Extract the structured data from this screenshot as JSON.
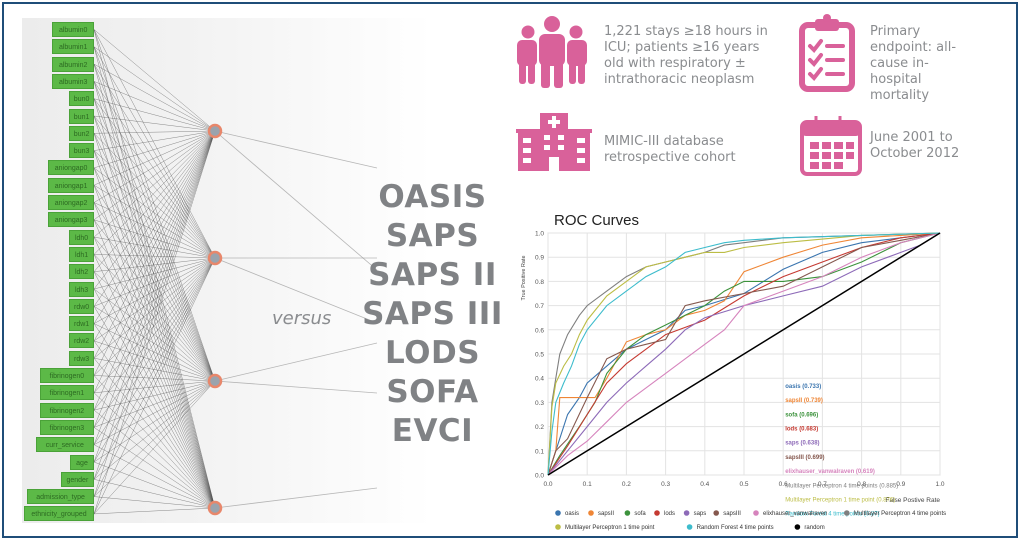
{
  "features": [
    "albumin0",
    "albumin1",
    "albumin2",
    "albumin3",
    "bun0",
    "bun1",
    "bun2",
    "bun3",
    "aniongap0",
    "aniongap1",
    "aniongap2",
    "aniongap3",
    "ldh0",
    "ldh1",
    "ldh2",
    "ldh3",
    "rdw0",
    "rdw1",
    "rdw2",
    "rdw3",
    "fibrinogen0",
    "fibrinogen1",
    "fibrinogen2",
    "fibrinogen3",
    "curr_service",
    "age",
    "gender",
    "admission_type",
    "ethnicity_grouped"
  ],
  "versus_label": "versus",
  "scores": [
    "OASIS",
    "SAPS",
    "SAPS II",
    "SAPS III",
    "LODS",
    "SOFA",
    "EVCI"
  ],
  "info": {
    "cohort": "1,221 stays ≥18 hours in ICU; patients ≥16 years old with respiratory ± intrathoracic neoplasm",
    "endpoint": "Primary endpoint: all-cause in-hospital mortality",
    "database": "MIMIC-III database retrospective cohort",
    "period": "June 2001 to October 2012",
    "icon_color": "#d9619a",
    "icons": [
      "people-icon",
      "clipboard-checklist-icon",
      "hospital-icon",
      "calendar-icon"
    ]
  },
  "chart_data": {
    "type": "line",
    "title": "ROC Curves",
    "xlabel": "False Postive Rate",
    "ylabel": "True Positive Rate",
    "xlim": [
      0,
      1
    ],
    "ylim": [
      0,
      1
    ],
    "xticks": [
      "0.0",
      "0.1",
      "0.2",
      "0.3",
      "0.4",
      "0.5",
      "0.6",
      "0.7",
      "0.8",
      "0.9",
      "1.0"
    ],
    "yticks": [
      "0.0",
      "0.1",
      "0.2",
      "0.3",
      "0.4",
      "0.5",
      "0.6",
      "0.7",
      "0.8",
      "0.9",
      "1.0"
    ],
    "grid": true,
    "legend_position": "bottom",
    "series": [
      {
        "name": "oasis",
        "label": "oasis (0.733)",
        "auc": 0.733,
        "color": "#3b75af",
        "x": [
          0,
          0.02,
          0.05,
          0.08,
          0.1,
          0.15,
          0.2,
          0.25,
          0.3,
          0.35,
          0.4,
          0.5,
          0.6,
          0.7,
          0.8,
          0.9,
          1.0
        ],
        "y": [
          0,
          0.1,
          0.25,
          0.32,
          0.38,
          0.45,
          0.52,
          0.56,
          0.6,
          0.68,
          0.7,
          0.75,
          0.85,
          0.92,
          0.96,
          0.98,
          1.0
        ]
      },
      {
        "name": "sapsII",
        "label": "sapsII (0.739)",
        "auc": 0.739,
        "color": "#ef8636",
        "x": [
          0,
          0.02,
          0.03,
          0.08,
          0.12,
          0.15,
          0.2,
          0.25,
          0.3,
          0.35,
          0.4,
          0.45,
          0.5,
          0.6,
          0.7,
          0.8,
          0.9,
          1.0
        ],
        "y": [
          0,
          0.1,
          0.32,
          0.32,
          0.32,
          0.4,
          0.55,
          0.58,
          0.6,
          0.66,
          0.68,
          0.72,
          0.84,
          0.9,
          0.95,
          0.98,
          0.99,
          1.0
        ]
      },
      {
        "name": "sofa",
        "label": "sofa (0.696)",
        "auc": 0.696,
        "color": "#3c923c",
        "x": [
          0,
          0.03,
          0.08,
          0.12,
          0.15,
          0.2,
          0.25,
          0.3,
          0.35,
          0.4,
          0.45,
          0.5,
          0.6,
          0.7,
          0.8,
          0.9,
          1.0
        ],
        "y": [
          0,
          0.08,
          0.2,
          0.3,
          0.42,
          0.52,
          0.58,
          0.62,
          0.66,
          0.7,
          0.76,
          0.8,
          0.8,
          0.82,
          0.88,
          0.96,
          1.0
        ]
      },
      {
        "name": "lods",
        "label": "lods (0.683)",
        "auc": 0.683,
        "color": "#c53a32",
        "x": [
          0,
          0.05,
          0.1,
          0.15,
          0.2,
          0.25,
          0.3,
          0.4,
          0.5,
          0.6,
          0.7,
          0.8,
          0.9,
          1.0
        ],
        "y": [
          0,
          0.12,
          0.25,
          0.38,
          0.46,
          0.52,
          0.58,
          0.64,
          0.74,
          0.82,
          0.88,
          0.94,
          0.98,
          1.0
        ]
      },
      {
        "name": "saps",
        "label": "saps (0.638)",
        "auc": 0.638,
        "color": "#8d6ab8",
        "x": [
          0,
          0.05,
          0.1,
          0.15,
          0.2,
          0.25,
          0.3,
          0.35,
          0.4,
          0.5,
          0.6,
          0.7,
          0.8,
          0.9,
          0.95,
          1.0
        ],
        "y": [
          0,
          0.1,
          0.2,
          0.3,
          0.38,
          0.45,
          0.52,
          0.6,
          0.65,
          0.7,
          0.74,
          0.78,
          0.86,
          0.92,
          0.95,
          1.0
        ]
      },
      {
        "name": "sapsIII",
        "label": "sapsIII (0.699)",
        "auc": 0.699,
        "color": "#85584e",
        "x": [
          0,
          0.02,
          0.05,
          0.1,
          0.15,
          0.2,
          0.25,
          0.3,
          0.35,
          0.4,
          0.5,
          0.6,
          0.7,
          0.8,
          0.9,
          1.0
        ],
        "y": [
          0,
          0.1,
          0.15,
          0.32,
          0.48,
          0.52,
          0.54,
          0.56,
          0.7,
          0.72,
          0.75,
          0.78,
          0.86,
          0.94,
          0.97,
          1.0
        ]
      },
      {
        "name": "elixhauser_vanwalraven",
        "label": "elixhauser_vanwalraven (0.619)",
        "auc": 0.619,
        "color": "#d684bd",
        "x": [
          0,
          0.05,
          0.1,
          0.15,
          0.2,
          0.25,
          0.3,
          0.35,
          0.4,
          0.45,
          0.5,
          0.6,
          0.7,
          0.8,
          0.9,
          1.0
        ],
        "y": [
          0,
          0.08,
          0.14,
          0.22,
          0.3,
          0.36,
          0.42,
          0.48,
          0.54,
          0.6,
          0.7,
          0.76,
          0.82,
          0.9,
          0.96,
          1.0
        ]
      },
      {
        "name": "Multilayer Perceptron 4 time points",
        "label": "Multilayer Perceptron 4 time points (0.885)",
        "auc": 0.885,
        "color": "#7f7f7f",
        "x": [
          0,
          0.01,
          0.02,
          0.03,
          0.05,
          0.08,
          0.1,
          0.15,
          0.2,
          0.25,
          0.3,
          0.35,
          0.4,
          0.45,
          0.5,
          0.6,
          0.8,
          1.0
        ],
        "y": [
          0,
          0.3,
          0.4,
          0.5,
          0.58,
          0.66,
          0.7,
          0.76,
          0.82,
          0.86,
          0.88,
          0.9,
          0.92,
          0.95,
          0.96,
          0.98,
          0.99,
          1.0
        ]
      },
      {
        "name": "Multilayer Perceptron 1 time point",
        "label": "Multilayer Perceptron 1 time point (0.876)",
        "auc": 0.876,
        "color": "#bcbd45",
        "x": [
          0,
          0.01,
          0.02,
          0.04,
          0.06,
          0.08,
          0.1,
          0.15,
          0.2,
          0.25,
          0.3,
          0.35,
          0.4,
          0.45,
          0.5,
          0.6,
          0.8,
          1.0
        ],
        "y": [
          0,
          0.28,
          0.38,
          0.45,
          0.5,
          0.58,
          0.64,
          0.74,
          0.8,
          0.86,
          0.88,
          0.9,
          0.92,
          0.92,
          0.94,
          0.96,
          0.99,
          1.0
        ]
      },
      {
        "name": "Random Forest 4 time points",
        "label": "Random Forest 4 time points (0.87)",
        "auc": 0.87,
        "color": "#3dbccc",
        "x": [
          0,
          0.01,
          0.02,
          0.04,
          0.06,
          0.08,
          0.1,
          0.15,
          0.2,
          0.25,
          0.3,
          0.35,
          0.4,
          0.45,
          0.5,
          0.6,
          0.8,
          1.0
        ],
        "y": [
          0,
          0.18,
          0.3,
          0.38,
          0.45,
          0.54,
          0.6,
          0.7,
          0.76,
          0.82,
          0.86,
          0.92,
          0.94,
          0.96,
          0.97,
          0.98,
          0.99,
          1.0
        ]
      },
      {
        "name": "random",
        "label": "random",
        "color": "#000000",
        "x": [
          0,
          1
        ],
        "y": [
          0,
          1
        ]
      }
    ]
  }
}
